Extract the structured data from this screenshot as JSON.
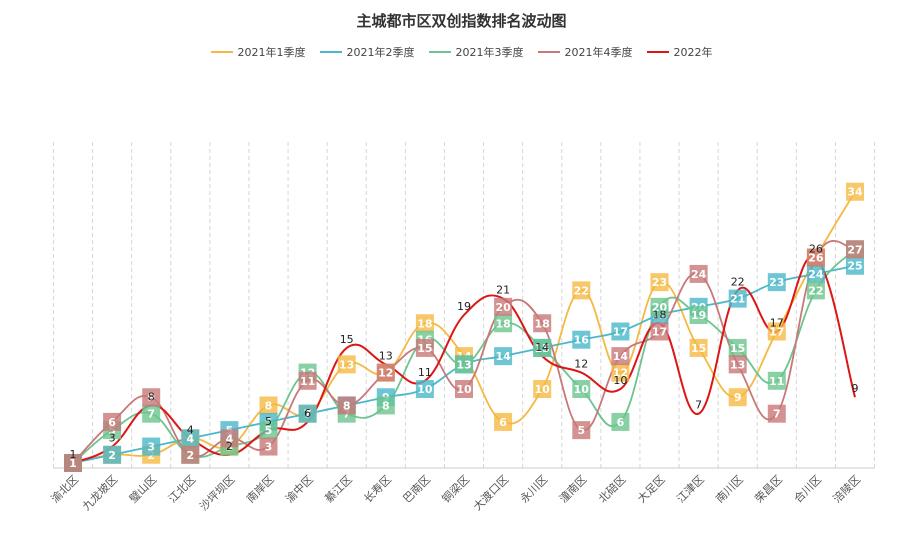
{
  "chart_data": {
    "type": "line",
    "title": "主城都市区双创指数排名波动图",
    "xlabel": "",
    "ylabel": "",
    "ylim": [
      0,
      40
    ],
    "grid": "vertical dashed",
    "legend_position": "top",
    "categories": [
      "渝北区",
      "九龙坡区",
      "璧山区",
      "江北区",
      "沙坪坝区",
      "南岸区",
      "渝中区",
      "綦江区",
      "长寿区",
      "巴南区",
      "铜梁区",
      "大渡口区",
      "永川区",
      "潼南区",
      "北碚区",
      "大足区",
      "江津区",
      "南川区",
      "荣昌区",
      "合川区",
      "涪陵区"
    ],
    "series": [
      {
        "name": "2021年1季度",
        "color": "#f5b942",
        "label_style": "box",
        "values": [
          1,
          2,
          2,
          4,
          3,
          8,
          7,
          13,
          12,
          18,
          14,
          6,
          10,
          22,
          12,
          23,
          15,
          9,
          17,
          26,
          34
        ]
      },
      {
        "name": "2021年2季度",
        "color": "#4ab8c9",
        "label_style": "box",
        "values": [
          1,
          2,
          3,
          4,
          5,
          6,
          7,
          8,
          9,
          10,
          13,
          14,
          15,
          16,
          17,
          19,
          20,
          21,
          23,
          24,
          25
        ]
      },
      {
        "name": "2021年3季度",
        "color": "#6cc48e",
        "label_style": "box",
        "values": [
          1,
          5,
          7,
          2,
          3,
          5,
          12,
          7,
          8,
          16,
          13,
          18,
          15,
          10,
          6,
          20,
          19,
          15,
          11,
          22,
          27
        ]
      },
      {
        "name": "2021年4季度",
        "color": "#c87878",
        "label_style": "box",
        "values": [
          1,
          6,
          9,
          2,
          4,
          3,
          11,
          8,
          12,
          15,
          10,
          20,
          18,
          5,
          14,
          17,
          24,
          13,
          7,
          26,
          27
        ]
      },
      {
        "name": "2022年",
        "color": "#dd1515",
        "label_style": "text",
        "values": [
          1,
          3,
          8,
          4,
          2,
          5,
          6,
          15,
          13,
          11,
          19,
          21,
          14,
          12,
          10,
          18,
          7,
          22,
          17,
          26,
          9
        ]
      }
    ]
  }
}
